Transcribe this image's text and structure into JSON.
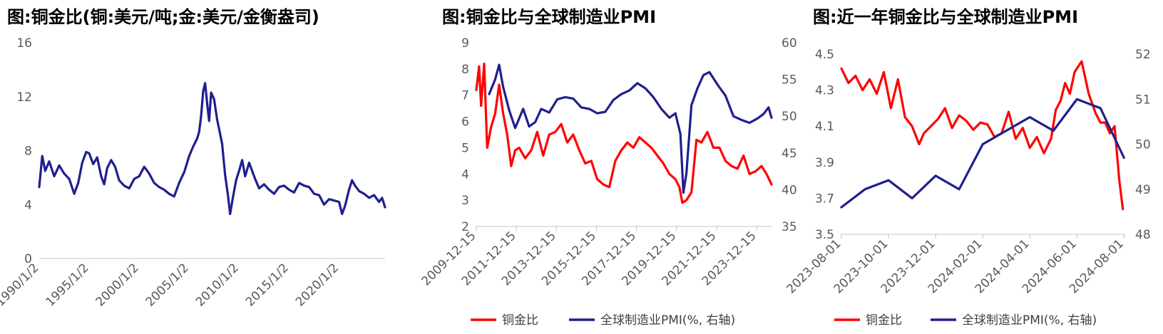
{
  "chart_data": [
    {
      "type": "line",
      "title": "图:铜金比(铜:美元/吨;金:美元/金衡盎司)",
      "x_ticks": [
        "1990/1/2",
        "1995/1/2",
        "2000/1/2",
        "2005/1/2",
        "2010/1/2",
        "2015/1/2",
        "2020/1/2"
      ],
      "y_ticks": [
        "0",
        "4",
        "8",
        "12",
        "16"
      ],
      "ylim": [
        0,
        16
      ],
      "xlim": [
        1990.0,
        2024.6
      ],
      "grid": false,
      "series": [
        {
          "color": "#1f1f8f",
          "x": [
            1990.0,
            1990.3,
            1990.6,
            1991.0,
            1991.5,
            1992.0,
            1992.5,
            1993.0,
            1993.5,
            1993.9,
            1994.3,
            1994.7,
            1995.0,
            1995.4,
            1995.8,
            1996.2,
            1996.5,
            1996.8,
            1997.2,
            1997.6,
            1998.0,
            1998.5,
            1999.0,
            1999.5,
            2000.0,
            2000.5,
            2001.0,
            2001.5,
            2002.0,
            2002.5,
            2003.0,
            2003.5,
            2004.0,
            2004.5,
            2005.0,
            2005.4,
            2005.8,
            2006.0,
            2006.2,
            2006.4,
            2006.6,
            2006.8,
            2007.0,
            2007.2,
            2007.5,
            2007.8,
            2008.0,
            2008.3,
            2008.6,
            2008.9,
            2009.1,
            2009.4,
            2009.7,
            2010.0,
            2010.3,
            2010.6,
            2011.0,
            2011.3,
            2011.6,
            2012.0,
            2012.5,
            2013.0,
            2013.5,
            2014.0,
            2014.5,
            2015.0,
            2015.5,
            2016.0,
            2016.5,
            2017.0,
            2017.5,
            2018.0,
            2018.5,
            2019.0,
            2019.5,
            2020.0,
            2020.3,
            2020.6,
            2021.0,
            2021.3,
            2021.6,
            2022.0,
            2022.5,
            2023.0,
            2023.5,
            2024.0,
            2024.3,
            2024.6
          ],
          "y": [
            5.3,
            7.6,
            6.5,
            7.2,
            6.1,
            6.9,
            6.3,
            5.9,
            4.8,
            5.6,
            7.1,
            7.9,
            7.8,
            7.0,
            7.5,
            6.1,
            5.5,
            6.7,
            7.3,
            6.8,
            5.8,
            5.4,
            5.2,
            5.9,
            6.1,
            6.8,
            6.3,
            5.6,
            5.3,
            5.1,
            4.8,
            4.6,
            5.6,
            6.4,
            7.6,
            8.3,
            8.9,
            9.4,
            10.6,
            12.4,
            13.0,
            11.5,
            10.2,
            12.3,
            11.8,
            10.3,
            9.6,
            8.5,
            6.2,
            4.6,
            3.3,
            4.6,
            5.8,
            6.5,
            7.3,
            6.1,
            7.1,
            6.5,
            5.9,
            5.2,
            5.5,
            5.1,
            4.8,
            5.3,
            5.4,
            5.1,
            4.9,
            5.6,
            5.4,
            5.3,
            4.8,
            4.7,
            4.0,
            4.4,
            4.3,
            4.2,
            3.3,
            3.9,
            5.1,
            5.8,
            5.4,
            5.0,
            4.8,
            4.5,
            4.7,
            4.2,
            4.5,
            3.8
          ]
        }
      ]
    },
    {
      "type": "line",
      "title": "图:铜金比与全球制造业PMI",
      "x_ticks": [
        "2009-12-15",
        "2011-12-15",
        "2013-12-15",
        "2015-12-15",
        "2017-12-15",
        "2019-12-15",
        "2021-12-15",
        "2023-12-15"
      ],
      "y_ticks_left": [
        "2",
        "3",
        "4",
        "5",
        "6",
        "7",
        "8",
        "9"
      ],
      "y_ticks_right": [
        "35",
        "40",
        "45",
        "50",
        "55",
        "60"
      ],
      "ylim_left": [
        2,
        9
      ],
      "ylim_right": [
        35,
        60
      ],
      "xlim": [
        2009.96,
        2024.7
      ],
      "legend": "bottom",
      "series": [
        {
          "name": "铜金比",
          "axis": "left",
          "color": "#ff0000",
          "x": [
            2009.96,
            2010.1,
            2010.2,
            2010.35,
            2010.5,
            2010.7,
            2010.9,
            2011.1,
            2011.3,
            2011.5,
            2011.7,
            2011.9,
            2012.1,
            2012.4,
            2012.7,
            2013.0,
            2013.3,
            2013.6,
            2013.9,
            2014.2,
            2014.5,
            2014.8,
            2015.1,
            2015.4,
            2015.7,
            2016.0,
            2016.3,
            2016.6,
            2016.9,
            2017.2,
            2017.5,
            2017.8,
            2018.1,
            2018.4,
            2018.7,
            2019.0,
            2019.3,
            2019.6,
            2019.9,
            2020.1,
            2020.25,
            2020.45,
            2020.7,
            2020.95,
            2021.2,
            2021.5,
            2021.8,
            2022.1,
            2022.4,
            2022.7,
            2023.0,
            2023.3,
            2023.6,
            2023.9,
            2024.2,
            2024.45,
            2024.7
          ],
          "y": [
            7.2,
            8.1,
            6.6,
            8.2,
            5.0,
            5.8,
            6.3,
            7.4,
            6.3,
            5.5,
            4.3,
            4.9,
            5.0,
            4.6,
            4.9,
            5.6,
            4.7,
            5.5,
            5.6,
            5.9,
            5.2,
            5.5,
            4.9,
            4.4,
            4.5,
            3.8,
            3.6,
            3.5,
            4.5,
            4.9,
            5.2,
            5.0,
            5.4,
            5.2,
            5.0,
            4.7,
            4.4,
            4.0,
            3.8,
            3.5,
            2.9,
            3.0,
            3.3,
            5.3,
            5.2,
            5.6,
            5.0,
            5.0,
            4.5,
            4.3,
            4.2,
            4.7,
            4.0,
            4.1,
            4.3,
            4.0,
            3.6
          ]
        },
        {
          "name": "全球制造业PMI(%, 右轴)",
          "axis": "right",
          "color": "#1f1f8f",
          "x": [
            2010.6,
            2010.9,
            2011.1,
            2011.3,
            2011.6,
            2011.9,
            2012.3,
            2012.6,
            2012.9,
            2013.2,
            2013.6,
            2014.0,
            2014.4,
            2014.8,
            2015.2,
            2015.6,
            2016.0,
            2016.4,
            2016.8,
            2017.2,
            2017.6,
            2018.0,
            2018.4,
            2018.8,
            2019.2,
            2019.6,
            2019.9,
            2020.15,
            2020.3,
            2020.45,
            2020.7,
            2021.0,
            2021.3,
            2021.6,
            2022.0,
            2022.4,
            2022.8,
            2023.2,
            2023.6,
            2024.0,
            2024.3,
            2024.55,
            2024.7
          ],
          "y": [
            53.0,
            55.0,
            57.0,
            54.0,
            50.8,
            48.4,
            51.0,
            48.6,
            49.2,
            51.0,
            50.5,
            52.3,
            52.6,
            52.4,
            51.2,
            51.0,
            50.4,
            50.6,
            52.2,
            53.0,
            53.5,
            54.5,
            53.8,
            52.6,
            51.0,
            49.8,
            50.4,
            47.6,
            39.6,
            42.2,
            51.5,
            53.8,
            55.6,
            56.0,
            54.3,
            52.8,
            50.0,
            49.5,
            49.1,
            49.7,
            50.3,
            51.2,
            49.8
          ]
        }
      ]
    },
    {
      "type": "line",
      "title": "图:近一年铜金比与全球制造业PMI",
      "x_ticks": [
        "2023-08-01",
        "2023-10-01",
        "2023-12-01",
        "2024-02-01",
        "2024-04-01",
        "2024-06-01",
        "2024-08-01"
      ],
      "y_ticks_left": [
        "3.5",
        "3.7",
        "3.9",
        "4.1",
        "4.3",
        "4.5"
      ],
      "y_ticks_right": [
        "48",
        "49",
        "50",
        "51",
        "52"
      ],
      "ylim_left": [
        3.5,
        4.5
      ],
      "ylim_right": [
        48,
        52
      ],
      "xlim": [
        0,
        12.05
      ],
      "legend": "bottom",
      "series": [
        {
          "name": "铜金比",
          "axis": "left",
          "color": "#ff0000",
          "x": [
            0.0,
            0.3,
            0.6,
            0.9,
            1.2,
            1.5,
            1.8,
            2.1,
            2.4,
            2.7,
            3.0,
            3.3,
            3.5,
            3.8,
            4.1,
            4.4,
            4.7,
            5.0,
            5.3,
            5.6,
            5.9,
            6.2,
            6.5,
            6.8,
            7.1,
            7.4,
            7.7,
            8.0,
            8.3,
            8.6,
            8.9,
            9.1,
            9.3,
            9.5,
            9.7,
            9.9,
            10.2,
            10.5,
            10.8,
            11.0,
            11.2,
            11.4,
            11.6,
            11.8,
            11.95
          ],
          "y": [
            4.42,
            4.34,
            4.38,
            4.3,
            4.36,
            4.28,
            4.4,
            4.2,
            4.36,
            4.15,
            4.1,
            4.0,
            4.06,
            4.1,
            4.14,
            4.2,
            4.09,
            4.16,
            4.13,
            4.08,
            4.12,
            4.11,
            4.04,
            4.06,
            4.18,
            4.03,
            4.09,
            3.98,
            4.04,
            3.95,
            4.03,
            4.19,
            4.24,
            4.34,
            4.28,
            4.4,
            4.46,
            4.28,
            4.17,
            4.12,
            4.12,
            4.06,
            4.1,
            3.8,
            3.64
          ]
        },
        {
          "name": "全球制造业PMI(%, 右轴)",
          "axis": "right",
          "color": "#1f1f8f",
          "x": [
            0,
            1,
            2,
            3,
            4,
            5,
            6,
            7,
            8,
            9,
            10,
            11,
            12
          ],
          "y": [
            48.6,
            49.0,
            49.2,
            48.8,
            49.3,
            49.0,
            50.0,
            50.3,
            50.6,
            50.3,
            51.0,
            50.8,
            49.7
          ]
        }
      ]
    }
  ]
}
